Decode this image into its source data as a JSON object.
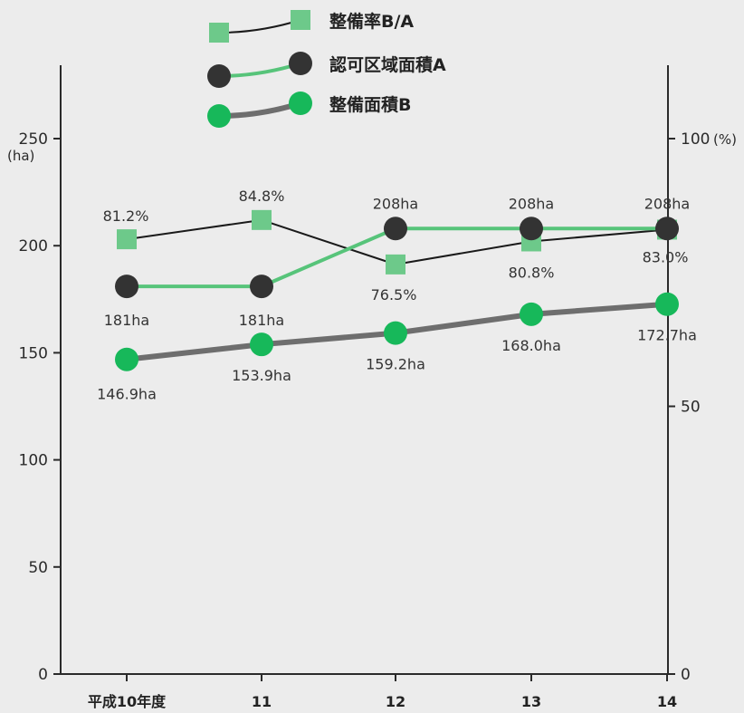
{
  "colors": {
    "background": "#ececec",
    "axis": "#2a2a2a",
    "rate_marker": "#6dc98a",
    "rate_line": "#1a1a1a",
    "approved_marker": "#333333",
    "approved_line": "#57c47a",
    "developed_marker": "#17b85a",
    "developed_line": "#6e6e6e"
  },
  "chart_data": {
    "type": "line",
    "categories": [
      "平成10年度",
      "11",
      "12",
      "13",
      "14"
    ],
    "left_axis": {
      "unit": "(ha)",
      "ylim": [
        0,
        250
      ],
      "ticks": [
        0,
        50,
        100,
        150,
        200,
        250
      ],
      "tick_labels": [
        "0",
        "50",
        "100",
        "150",
        "200",
        "250"
      ]
    },
    "right_axis": {
      "unit": "(%)",
      "ylim": [
        0,
        100
      ],
      "ticks": [
        0,
        50,
        100
      ],
      "tick_labels": [
        "0",
        "50",
        "100"
      ]
    },
    "series": [
      {
        "key": "rate",
        "name": "整備率B/A",
        "axis": "right",
        "marker": "square",
        "values": [
          81.2,
          84.8,
          76.5,
          80.8,
          83.0
        ],
        "labels": [
          "81.2%",
          "84.8%",
          "76.5%",
          "80.8%",
          "83.0%"
        ]
      },
      {
        "key": "approved",
        "name": "認可区域面積A",
        "axis": "left",
        "marker": "circle",
        "values": [
          181,
          181,
          208,
          208,
          208
        ],
        "labels": [
          "181ha",
          "181ha",
          "208ha",
          "208ha",
          "208ha"
        ]
      },
      {
        "key": "developed",
        "name": "整備面積B",
        "axis": "left",
        "marker": "circle",
        "values": [
          146.9,
          153.9,
          159.2,
          168.0,
          172.7
        ],
        "labels": [
          "146.9ha",
          "153.9ha",
          "159.2ha",
          "168.0ha",
          "172.7ha"
        ]
      }
    ],
    "legend": {
      "placement": "top-center",
      "entries": [
        "整備率B/A",
        "認可区域面積A",
        "整備面積B"
      ]
    },
    "grid": false
  }
}
